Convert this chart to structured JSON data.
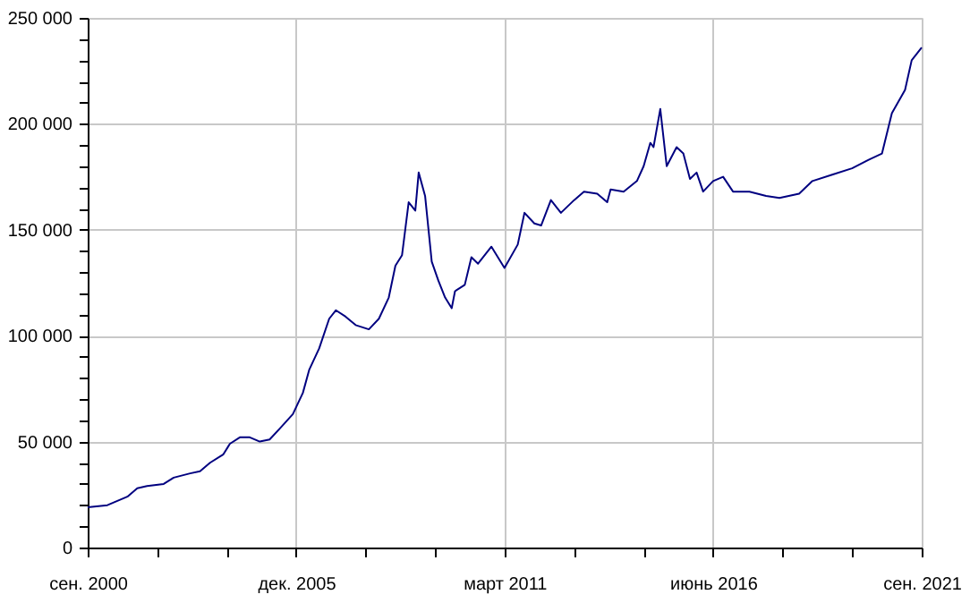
{
  "chart_data": {
    "type": "line",
    "x": [
      "2000-09",
      "2001-03",
      "2001-06",
      "2001-09",
      "2001-12",
      "2002-03",
      "2002-08",
      "2002-11",
      "2003-04",
      "2003-07",
      "2003-10",
      "2004-02",
      "2004-04",
      "2004-07",
      "2004-10",
      "2005-01",
      "2005-04",
      "2005-07",
      "2005-11",
      "2006-02",
      "2006-04",
      "2006-07",
      "2006-10",
      "2006-12",
      "2007-03",
      "2007-06",
      "2007-10",
      "2008-01",
      "2008-04",
      "2008-06",
      "2008-08",
      "2008-10",
      "2008-12",
      "2009-01",
      "2009-03",
      "2009-05",
      "2009-07",
      "2009-09",
      "2009-11",
      "2009-12",
      "2010-03",
      "2010-05",
      "2010-07",
      "2010-11",
      "2011-03",
      "2011-07",
      "2011-09",
      "2011-12",
      "2012-02",
      "2012-05",
      "2012-08",
      "2012-12",
      "2013-03",
      "2013-07",
      "2013-10",
      "2013-11",
      "2014-03",
      "2014-07",
      "2014-09",
      "2014-11",
      "2014-12",
      "2015-02",
      "2015-04",
      "2015-07",
      "2015-09",
      "2015-11",
      "2016-01",
      "2016-03",
      "2016-06",
      "2016-09",
      "2016-12",
      "2017-05",
      "2017-10",
      "2018-02",
      "2018-08",
      "2018-12",
      "2019-06",
      "2019-12",
      "2020-05",
      "2020-09",
      "2020-12",
      "2021-04",
      "2021-06",
      "2021-09"
    ],
    "series": [
      {
        "color": "#000080",
        "values": [
          19000,
          20000,
          22000,
          24000,
          28000,
          29000,
          30000,
          33000,
          35000,
          36000,
          40000,
          44000,
          49000,
          52000,
          52000,
          50000,
          51000,
          56000,
          63000,
          73000,
          84000,
          94000,
          108000,
          112000,
          109000,
          105000,
          103000,
          108000,
          118000,
          133000,
          138000,
          163000,
          159000,
          177000,
          166000,
          135000,
          126000,
          118000,
          113000,
          121000,
          124000,
          137000,
          134000,
          142000,
          132000,
          143000,
          158000,
          153000,
          152000,
          164000,
          158000,
          164000,
          168000,
          167000,
          163000,
          169000,
          168000,
          173000,
          180000,
          191000,
          189000,
          207000,
          180000,
          189000,
          186000,
          174000,
          177000,
          168000,
          173000,
          175000,
          168000,
          168000,
          166000,
          165000,
          167000,
          173000,
          176000,
          179000,
          183000,
          186000,
          205000,
          216000,
          230000,
          236000
        ]
      }
    ],
    "xlim": [
      "2000-09",
      "2021-09"
    ],
    "xticks": [
      {
        "value": "2000-09",
        "label": "сен. 2000"
      },
      {
        "value": "2002-06",
        "label": null
      },
      {
        "value": "2004-03",
        "label": null
      },
      {
        "value": "2005-12",
        "label": "дек. 2005"
      },
      {
        "value": "2007-09",
        "label": null
      },
      {
        "value": "2009-06",
        "label": null
      },
      {
        "value": "2011-03",
        "label": "март 2011"
      },
      {
        "value": "2012-12",
        "label": null
      },
      {
        "value": "2014-09",
        "label": null
      },
      {
        "value": "2016-06",
        "label": "июнь 2016"
      },
      {
        "value": "2018-03",
        "label": null
      },
      {
        "value": "2019-12",
        "label": null
      },
      {
        "value": "2021-09",
        "label": "сен. 2021"
      }
    ],
    "ylim": [
      0,
      250000
    ],
    "yticks": [
      0,
      {
        "value": 10000,
        "label": null
      },
      {
        "value": 20000,
        "label": null
      },
      {
        "value": 30000,
        "label": null
      },
      {
        "value": 40000,
        "label": null
      },
      {
        "value": 50000,
        "label": "50 000"
      },
      {
        "value": 60000,
        "label": null
      },
      {
        "value": 70000,
        "label": null
      },
      {
        "value": 80000,
        "label": null
      },
      {
        "value": 90000,
        "label": null
      },
      {
        "value": 100000,
        "label": "100 000"
      },
      {
        "value": 110000,
        "label": null
      },
      {
        "value": 120000,
        "label": null
      },
      {
        "value": 130000,
        "label": null
      },
      {
        "value": 140000,
        "label": null
      },
      {
        "value": 150000,
        "label": "150 000"
      },
      {
        "value": 160000,
        "label": null
      },
      {
        "value": 170000,
        "label": null
      },
      {
        "value": 180000,
        "label": null
      },
      {
        "value": 190000,
        "label": null
      },
      {
        "value": 200000,
        "label": "200 000"
      },
      {
        "value": 210000,
        "label": null
      },
      {
        "value": 220000,
        "label": null
      },
      {
        "value": 230000,
        "label": null
      },
      {
        "value": 240000,
        "label": null
      },
      {
        "value": 250000,
        "label": "250 000"
      }
    ],
    "grid": true,
    "line_style": "solid"
  }
}
